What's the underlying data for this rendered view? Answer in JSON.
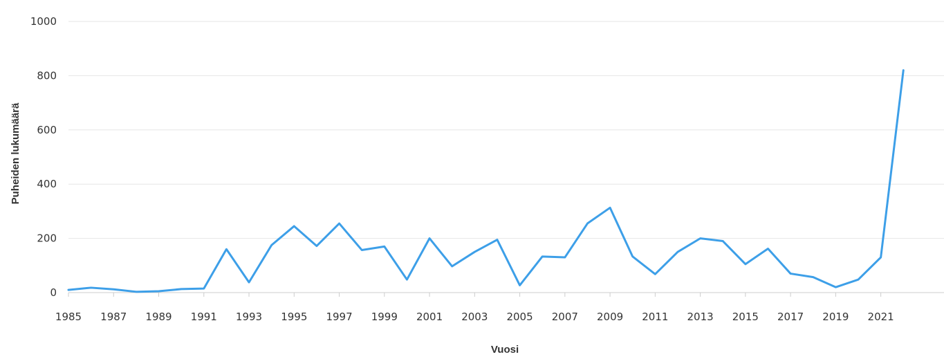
{
  "chart_data": {
    "type": "line",
    "title": "",
    "xlabel": "Vuosi",
    "ylabel": "Puheiden lukumäärä",
    "x": [
      1985,
      1986,
      1987,
      1988,
      1989,
      1990,
      1991,
      1992,
      1993,
      1994,
      1995,
      1996,
      1997,
      1998,
      1999,
      2000,
      2001,
      2002,
      2003,
      2004,
      2005,
      2006,
      2007,
      2008,
      2009,
      2010,
      2011,
      2012,
      2013,
      2014,
      2015,
      2016,
      2017,
      2018,
      2019,
      2020,
      2021,
      2022
    ],
    "xticks": [
      "1985",
      "1987",
      "1989",
      "1991",
      "1993",
      "1995",
      "1997",
      "1999",
      "2001",
      "2003",
      "2005",
      "2007",
      "2009",
      "2011",
      "2013",
      "2015",
      "2017",
      "2019",
      "2021"
    ],
    "xlim": [
      1985,
      2023.8
    ],
    "yticks": [
      "0",
      "200",
      "400",
      "600",
      "800",
      "1000"
    ],
    "ylim": [
      0,
      1000
    ],
    "grid": true,
    "legend": "none",
    "series": [
      {
        "values": [
          10,
          18,
          12,
          3,
          5,
          13,
          15,
          160,
          38,
          175,
          245,
          172,
          255,
          157,
          170,
          48,
          200,
          97,
          150,
          195,
          27,
          133,
          130,
          255,
          313,
          133,
          68,
          150,
          200,
          190,
          105,
          162,
          70,
          57,
          20,
          48,
          130,
          820
        ],
        "color": "#3d9fe8"
      }
    ]
  }
}
